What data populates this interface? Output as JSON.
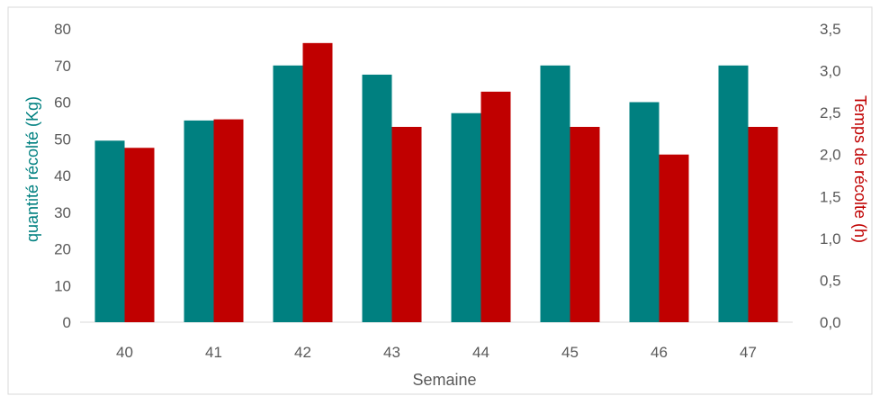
{
  "chart_data": {
    "type": "bar",
    "title": "",
    "categories": [
      "40",
      "41",
      "42",
      "43",
      "44",
      "45",
      "46",
      "47"
    ],
    "xlabel": "Semaine",
    "ylabel": "quantité récolté (Kg)",
    "y2label": "Temps de récolte (h)",
    "ylim": [
      0,
      80
    ],
    "y2lim": [
      0,
      3.5
    ],
    "yticks": [
      "0",
      "10",
      "20",
      "30",
      "40",
      "50",
      "60",
      "70",
      "80"
    ],
    "y2ticks": [
      "0,0",
      "0,5",
      "1,0",
      "1,5",
      "2,0",
      "2,5",
      "3,0",
      "3,5"
    ],
    "grid": false,
    "legend": "none",
    "series": [
      {
        "axis": "left",
        "color": "#008080",
        "values": [
          49.5,
          55,
          70,
          67.5,
          57,
          70,
          60,
          70
        ]
      },
      {
        "axis": "right",
        "color": "#C00000",
        "values": [
          2.08,
          2.42,
          3.33,
          2.33,
          2.75,
          2.33,
          2.0,
          2.33
        ]
      }
    ],
    "colors": {
      "left_axis_title": "#008080",
      "right_axis_title": "#C00000",
      "axis_line": "#D9D9D9",
      "tick_text": "#595959"
    }
  }
}
